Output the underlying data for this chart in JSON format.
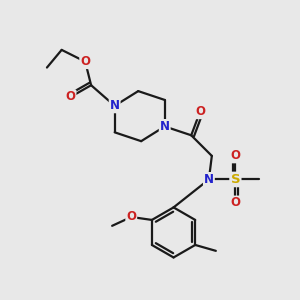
{
  "bg_color": "#e8e8e8",
  "bond_color": "#1a1a1a",
  "N_color": "#2222cc",
  "O_color": "#cc2222",
  "S_color": "#ccaa00",
  "line_width": 1.6,
  "font_size": 8.5,
  "xlim": [
    0,
    10
  ],
  "ylim": [
    0,
    10
  ]
}
